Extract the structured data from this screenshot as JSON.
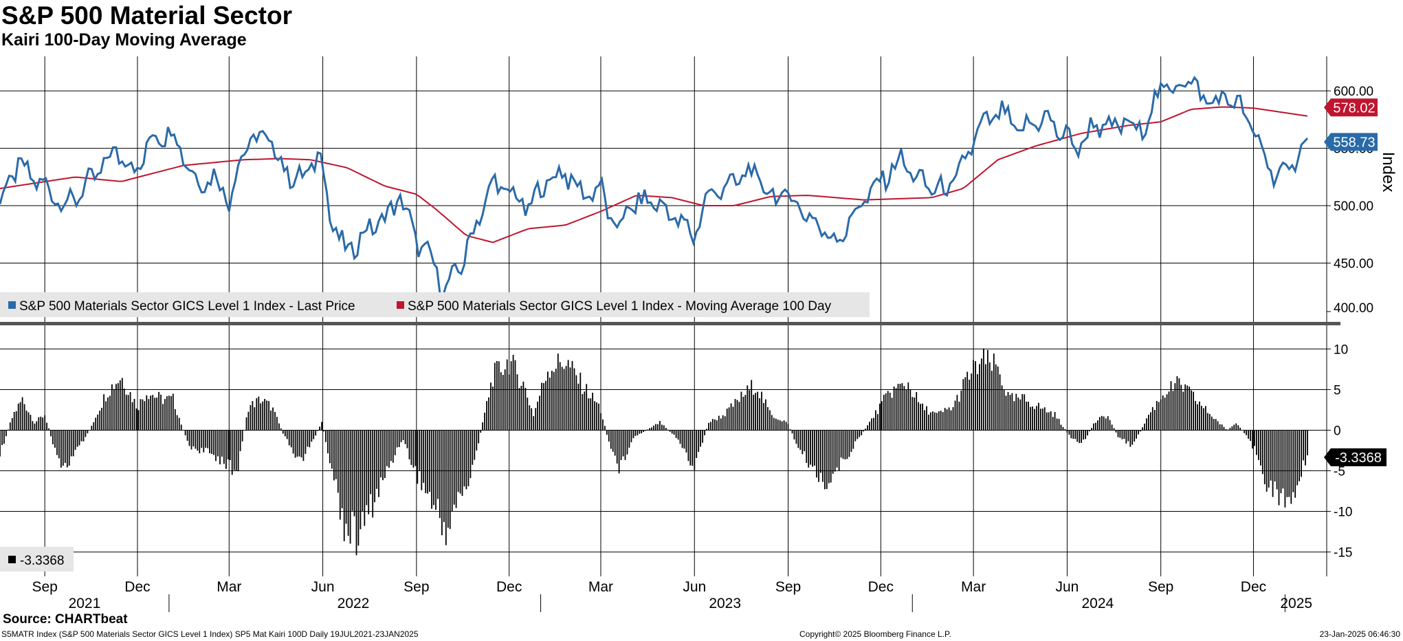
{
  "title": "S&P 500 Material Sector",
  "subtitle": "Kairi 100-Day Moving Average",
  "source": "Source: CHARTbeat",
  "footer": {
    "left": "S5MATR Index (S&P 500 Materials Sector GICS Level 1 Index) SP5 Mat Kairi 100D  Daily 19JUL2021-23JAN2025",
    "center": "Copyright© 2025 Bloomberg Finance L.P.",
    "right": "23-Jan-2025 06:46:30"
  },
  "colors": {
    "price": "#2a6aa8",
    "ma": "#c0142e",
    "kairi": "#000000",
    "grid": "#000000",
    "legend_bg": "#e6e6e6"
  },
  "chart_data": [
    {
      "type": "line",
      "panel": "top",
      "ylabel": "Index",
      "ylim": [
        400,
        630
      ],
      "yticks": [
        "600.00",
        "550.00",
        "500.00",
        "450.00",
        "400.00"
      ],
      "x_start": "2021-07-19",
      "x_end": "2025-01-23",
      "series": [
        {
          "name": "S&P 500 Materials Sector GICS Level 1 Index - Last Price",
          "last_label": "558.73",
          "points": [
            [
              "2021-07-19",
              503
            ],
            [
              "2021-08-05",
              535
            ],
            [
              "2021-08-20",
              525
            ],
            [
              "2021-09-10",
              510
            ],
            [
              "2021-09-22",
              500
            ],
            [
              "2021-10-15",
              520
            ],
            [
              "2021-11-10",
              548
            ],
            [
              "2021-12-01",
              530
            ],
            [
              "2021-12-15",
              560
            ],
            [
              "2022-01-05",
              565
            ],
            [
              "2022-01-28",
              520
            ],
            [
              "2022-02-15",
              525
            ],
            [
              "2022-03-01",
              506
            ],
            [
              "2022-03-18",
              555
            ],
            [
              "2022-04-08",
              560
            ],
            [
              "2022-04-25",
              530
            ],
            [
              "2022-05-12",
              522
            ],
            [
              "2022-05-30",
              548
            ],
            [
              "2022-06-08",
              490
            ],
            [
              "2022-06-24",
              458
            ],
            [
              "2022-07-14",
              478
            ],
            [
              "2022-08-02",
              490
            ],
            [
              "2022-08-16",
              508
            ],
            [
              "2022-09-01",
              470
            ],
            [
              "2022-09-16",
              452
            ],
            [
              "2022-09-30",
              426
            ],
            [
              "2022-10-18",
              455
            ],
            [
              "2022-11-01",
              490
            ],
            [
              "2022-11-15",
              520
            ],
            [
              "2022-12-01",
              512
            ],
            [
              "2022-12-20",
              497
            ],
            [
              "2023-01-05",
              520
            ],
            [
              "2023-01-25",
              530
            ],
            [
              "2023-02-10",
              510
            ],
            [
              "2023-03-01",
              515
            ],
            [
              "2023-03-15",
              478
            ],
            [
              "2023-03-31",
              500
            ],
            [
              "2023-04-20",
              505
            ],
            [
              "2023-05-10",
              492
            ],
            [
              "2023-05-31",
              474
            ],
            [
              "2023-06-15",
              510
            ],
            [
              "2023-07-05",
              518
            ],
            [
              "2023-07-28",
              530
            ],
            [
              "2023-08-15",
              508
            ],
            [
              "2023-08-31",
              510
            ],
            [
              "2023-09-20",
              492
            ],
            [
              "2023-10-05",
              478
            ],
            [
              "2023-10-20",
              470
            ],
            [
              "2023-11-10",
              500
            ],
            [
              "2023-11-30",
              520
            ],
            [
              "2023-12-20",
              540
            ],
            [
              "2024-01-10",
              520
            ],
            [
              "2024-01-31",
              512
            ],
            [
              "2024-02-15",
              525
            ],
            [
              "2024-03-05",
              565
            ],
            [
              "2024-03-28",
              582
            ],
            [
              "2024-04-15",
              563
            ],
            [
              "2024-05-08",
              578
            ],
            [
              "2024-05-31",
              560
            ],
            [
              "2024-06-12",
              550
            ],
            [
              "2024-06-28",
              572
            ],
            [
              "2024-07-17",
              565
            ],
            [
              "2024-07-31",
              578
            ],
            [
              "2024-08-05",
              560
            ],
            [
              "2024-08-20",
              578
            ],
            [
              "2024-09-05",
              608
            ],
            [
              "2024-09-12",
              598
            ],
            [
              "2024-09-25",
              614
            ],
            [
              "2024-10-10",
              595
            ],
            [
              "2024-10-25",
              590
            ],
            [
              "2024-11-08",
              595
            ],
            [
              "2024-11-22",
              580
            ],
            [
              "2024-12-06",
              555
            ],
            [
              "2024-12-19",
              530
            ],
            [
              "2025-01-03",
              525
            ],
            [
              "2025-01-16",
              552
            ],
            [
              "2025-01-23",
              558.73
            ]
          ]
        },
        {
          "name": "S&P 500 Materials Sector GICS Level 1 Index - Moving Average 100 Day",
          "last_label": "578.02",
          "points": [
            [
              "2021-07-19",
              515
            ],
            [
              "2021-10-01",
              525
            ],
            [
              "2021-11-15",
              521
            ],
            [
              "2022-01-15",
              535
            ],
            [
              "2022-03-15",
              540
            ],
            [
              "2022-04-20",
              541
            ],
            [
              "2022-05-20",
              540
            ],
            [
              "2022-06-25",
              533
            ],
            [
              "2022-08-01",
              517
            ],
            [
              "2022-09-01",
              510
            ],
            [
              "2022-09-20",
              497
            ],
            [
              "2022-10-20",
              474
            ],
            [
              "2022-11-15",
              468
            ],
            [
              "2022-12-20",
              480
            ],
            [
              "2023-01-25",
              483
            ],
            [
              "2023-03-01",
              495
            ],
            [
              "2023-04-05",
              509
            ],
            [
              "2023-05-10",
              507
            ],
            [
              "2023-06-10",
              500
            ],
            [
              "2023-07-10",
              500
            ],
            [
              "2023-08-15",
              508
            ],
            [
              "2023-09-20",
              509
            ],
            [
              "2023-11-15",
              505
            ],
            [
              "2024-01-20",
              507
            ],
            [
              "2024-02-20",
              515
            ],
            [
              "2024-03-25",
              540
            ],
            [
              "2024-05-01",
              552
            ],
            [
              "2024-06-15",
              563
            ],
            [
              "2024-08-01",
              570
            ],
            [
              "2024-09-01",
              573
            ],
            [
              "2024-10-01",
              584
            ],
            [
              "2024-11-01",
              586
            ],
            [
              "2024-12-01",
              585
            ],
            [
              "2025-01-23",
              578.02
            ]
          ]
        }
      ],
      "legend": [
        "S&P 500 Materials Sector GICS Level 1 Index - Last Price",
        "S&P 500 Materials Sector GICS Level 1 Index - Moving Average 100 Day"
      ]
    },
    {
      "type": "bar",
      "panel": "bottom",
      "ylim": [
        -18,
        13
      ],
      "yticks": [
        "10",
        "5",
        "0",
        "-5",
        "-10",
        "-15"
      ],
      "series_name": "SP5 Mat Kairi 100D",
      "last_value": "-3.3368",
      "legend_label": "-3.3368",
      "points": [
        [
          "2021-07-19",
          -3
        ],
        [
          "2021-08-01",
          2
        ],
        [
          "2021-08-10",
          4
        ],
        [
          "2021-08-22",
          1
        ],
        [
          "2021-09-01",
          2
        ],
        [
          "2021-09-10",
          -2
        ],
        [
          "2021-09-20",
          -5
        ],
        [
          "2021-10-01",
          -3
        ],
        [
          "2021-10-15",
          0
        ],
        [
          "2021-11-01",
          5
        ],
        [
          "2021-11-15",
          7
        ],
        [
          "2021-12-01",
          3
        ],
        [
          "2021-12-10",
          5
        ],
        [
          "2021-12-25",
          4
        ],
        [
          "2022-01-05",
          4
        ],
        [
          "2022-01-20",
          -2
        ],
        [
          "2022-02-10",
          -3
        ],
        [
          "2022-02-25",
          -4
        ],
        [
          "2022-03-08",
          -6
        ],
        [
          "2022-03-20",
          3
        ],
        [
          "2022-04-01",
          4
        ],
        [
          "2022-04-12",
          3
        ],
        [
          "2022-04-25",
          -1
        ],
        [
          "2022-05-10",
          -4
        ],
        [
          "2022-05-20",
          -2
        ],
        [
          "2022-05-31",
          1
        ],
        [
          "2022-06-10",
          -5
        ],
        [
          "2022-06-22",
          -12
        ],
        [
          "2022-07-05",
          -14
        ],
        [
          "2022-07-18",
          -10
        ],
        [
          "2022-08-01",
          -6
        ],
        [
          "2022-08-18",
          -1
        ],
        [
          "2022-08-30",
          -5
        ],
        [
          "2022-09-15",
          -9
        ],
        [
          "2022-09-30",
          -13
        ],
        [
          "2022-10-12",
          -9
        ],
        [
          "2022-10-25",
          -6
        ],
        [
          "2022-11-05",
          1
        ],
        [
          "2022-11-15",
          7
        ],
        [
          "2022-12-01",
          9
        ],
        [
          "2022-12-15",
          6
        ],
        [
          "2022-12-25",
          2
        ],
        [
          "2023-01-08",
          8
        ],
        [
          "2023-01-25",
          9
        ],
        [
          "2023-02-10",
          6
        ],
        [
          "2023-02-28",
          3
        ],
        [
          "2023-03-10",
          -2
        ],
        [
          "2023-03-20",
          -5
        ],
        [
          "2023-04-01",
          -1
        ],
        [
          "2023-04-15",
          0
        ],
        [
          "2023-04-28",
          1
        ],
        [
          "2023-05-15",
          -1
        ],
        [
          "2023-05-31",
          -5
        ],
        [
          "2023-06-15",
          1
        ],
        [
          "2023-06-30",
          2
        ],
        [
          "2023-07-15",
          4
        ],
        [
          "2023-07-31",
          6
        ],
        [
          "2023-08-15",
          2
        ],
        [
          "2023-08-31",
          1
        ],
        [
          "2023-09-10",
          -2
        ],
        [
          "2023-09-25",
          -5
        ],
        [
          "2023-10-10",
          -7
        ],
        [
          "2023-10-25",
          -4
        ],
        [
          "2023-11-10",
          -1
        ],
        [
          "2023-11-25",
          2
        ],
        [
          "2023-12-10",
          5
        ],
        [
          "2023-12-28",
          6
        ],
        [
          "2024-01-10",
          3
        ],
        [
          "2024-01-25",
          2
        ],
        [
          "2024-02-10",
          3
        ],
        [
          "2024-02-25",
          7
        ],
        [
          "2024-03-10",
          9
        ],
        [
          "2024-03-25",
          8
        ],
        [
          "2024-04-05",
          4
        ],
        [
          "2024-04-20",
          4
        ],
        [
          "2024-05-05",
          3
        ],
        [
          "2024-05-20",
          2
        ],
        [
          "2024-06-05",
          -1
        ],
        [
          "2024-06-15",
          -2
        ],
        [
          "2024-06-28",
          1
        ],
        [
          "2024-07-10",
          2
        ],
        [
          "2024-07-22",
          -1
        ],
        [
          "2024-08-05",
          -2
        ],
        [
          "2024-08-20",
          2
        ],
        [
          "2024-09-05",
          5
        ],
        [
          "2024-09-20",
          6
        ],
        [
          "2024-10-05",
          4
        ],
        [
          "2024-10-20",
          2
        ],
        [
          "2024-11-05",
          0
        ],
        [
          "2024-11-15",
          1
        ],
        [
          "2024-11-25",
          -1
        ],
        [
          "2024-12-05",
          -3
        ],
        [
          "2024-12-15",
          -7
        ],
        [
          "2024-12-28",
          -9
        ],
        [
          "2025-01-08",
          -9
        ],
        [
          "2025-01-16",
          -6
        ],
        [
          "2025-01-23",
          -3.3368
        ]
      ]
    }
  ],
  "x_axis": {
    "months": [
      {
        "label": "Sep",
        "date": "2021-09-01"
      },
      {
        "label": "Dec",
        "date": "2021-12-01"
      },
      {
        "label": "Mar",
        "date": "2022-03-01"
      },
      {
        "label": "Jun",
        "date": "2022-06-01"
      },
      {
        "label": "Sep",
        "date": "2022-09-01"
      },
      {
        "label": "Dec",
        "date": "2022-12-01"
      },
      {
        "label": "Mar",
        "date": "2023-03-01"
      },
      {
        "label": "Jun",
        "date": "2023-06-01"
      },
      {
        "label": "Sep",
        "date": "2023-09-01"
      },
      {
        "label": "Dec",
        "date": "2023-12-01"
      },
      {
        "label": "Mar",
        "date": "2024-03-01"
      },
      {
        "label": "Jun",
        "date": "2024-06-01"
      },
      {
        "label": "Sep",
        "date": "2024-09-01"
      },
      {
        "label": "Dec",
        "date": "2024-12-01"
      }
    ],
    "years": [
      {
        "label": "2021",
        "center": "2021-10-10"
      },
      {
        "label": "2022",
        "center": "2022-07-01"
      },
      {
        "label": "2023",
        "center": "2023-07-01"
      },
      {
        "label": "2024",
        "center": "2024-07-01"
      },
      {
        "label": "2025",
        "center": "2025-01-12"
      }
    ],
    "year_bounds": [
      "2022-01-01",
      "2023-01-01",
      "2024-01-01",
      "2025-01-01"
    ]
  }
}
